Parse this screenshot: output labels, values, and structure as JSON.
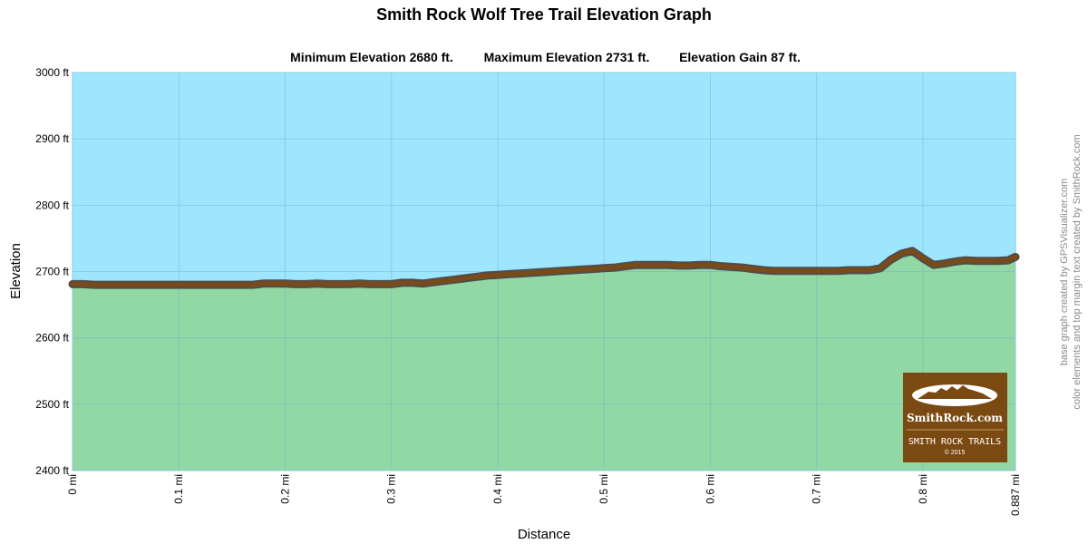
{
  "chart_data": {
    "type": "area",
    "title": "Smith Rock Wolf Tree Trail Elevation Graph",
    "stats": [
      {
        "label": "Minimum Elevation  2680 ft."
      },
      {
        "label": "Maximum Elevation 2731 ft."
      },
      {
        "label": "Elevation Gain 87 ft."
      }
    ],
    "xlabel": "Distance",
    "ylabel": "Elevation",
    "xlim": [
      0,
      0.887
    ],
    "ylim": [
      2400,
      3000
    ],
    "x_ticks": [
      {
        "value": 0,
        "label": "0 mi"
      },
      {
        "value": 0.1,
        "label": "0.1 mi"
      },
      {
        "value": 0.2,
        "label": "0.2 mi"
      },
      {
        "value": 0.3,
        "label": "0.3 mi"
      },
      {
        "value": 0.4,
        "label": "0.4 mi"
      },
      {
        "value": 0.5,
        "label": "0.5 mi"
      },
      {
        "value": 0.6,
        "label": "0.6 mi"
      },
      {
        "value": 0.7,
        "label": "0.7 mi"
      },
      {
        "value": 0.8,
        "label": "0.8 mi"
      },
      {
        "value": 0.887,
        "label": "0.887 mi"
      }
    ],
    "y_ticks": [
      {
        "value": 3000,
        "label": "3000 ft"
      },
      {
        "value": 2900,
        "label": "2900 ft"
      },
      {
        "value": 2800,
        "label": "2800 ft"
      },
      {
        "value": 2700,
        "label": "2700 ft"
      },
      {
        "value": 2600,
        "label": "2600 ft"
      },
      {
        "value": 2500,
        "label": "2500 ft"
      },
      {
        "value": 2400,
        "label": "2400 ft"
      }
    ],
    "grid": true,
    "series": [
      {
        "x": [
          0,
          0.01,
          0.02,
          0.05,
          0.1,
          0.15,
          0.17,
          0.18,
          0.2,
          0.21,
          0.22,
          0.23,
          0.24,
          0.26,
          0.27,
          0.28,
          0.3,
          0.31,
          0.32,
          0.33,
          0.34,
          0.35,
          0.36,
          0.37,
          0.38,
          0.39,
          0.4,
          0.41,
          0.42,
          0.43,
          0.44,
          0.45,
          0.46,
          0.47,
          0.48,
          0.49,
          0.5,
          0.51,
          0.52,
          0.53,
          0.54,
          0.55,
          0.56,
          0.57,
          0.58,
          0.59,
          0.6,
          0.61,
          0.62,
          0.63,
          0.64,
          0.65,
          0.66,
          0.7,
          0.72,
          0.73,
          0.74,
          0.75,
          0.76,
          0.77,
          0.78,
          0.79,
          0.8,
          0.81,
          0.82,
          0.83,
          0.84,
          0.85,
          0.86,
          0.87,
          0.88,
          0.887
        ],
        "y": [
          2681,
          2681,
          2680,
          2680,
          2680,
          2680,
          2680,
          2682,
          2682,
          2681,
          2681,
          2682,
          2681,
          2681,
          2682,
          2681,
          2681,
          2683,
          2683,
          2682,
          2684,
          2686,
          2688,
          2690,
          2692,
          2694,
          2695,
          2696,
          2697,
          2698,
          2699,
          2700,
          2701,
          2702,
          2703,
          2704,
          2705,
          2706,
          2708,
          2710,
          2710,
          2710,
          2710,
          2709,
          2709,
          2710,
          2710,
          2708,
          2707,
          2706,
          2704,
          2702,
          2701,
          2701,
          2701,
          2702,
          2702,
          2702,
          2705,
          2718,
          2727,
          2731,
          2720,
          2710,
          2712,
          2715,
          2717,
          2716,
          2716,
          2716,
          2717,
          2722
        ]
      }
    ],
    "colors": {
      "sky": "#9ee6fe",
      "ground": "#92d8a5",
      "line": "#7a4a17",
      "line_outline": "#4e4e4e",
      "grid": "#6bb0cc"
    }
  },
  "credits": {
    "line1": "base graph created by GPSVisualizer.com",
    "line2": "color elements and top margin text created by SmithRock.com"
  },
  "badge": {
    "site": "SmithRock.com",
    "text": "SMITH ROCK TRAILS",
    "year": "© 2015",
    "color": "#7b4a12"
  }
}
